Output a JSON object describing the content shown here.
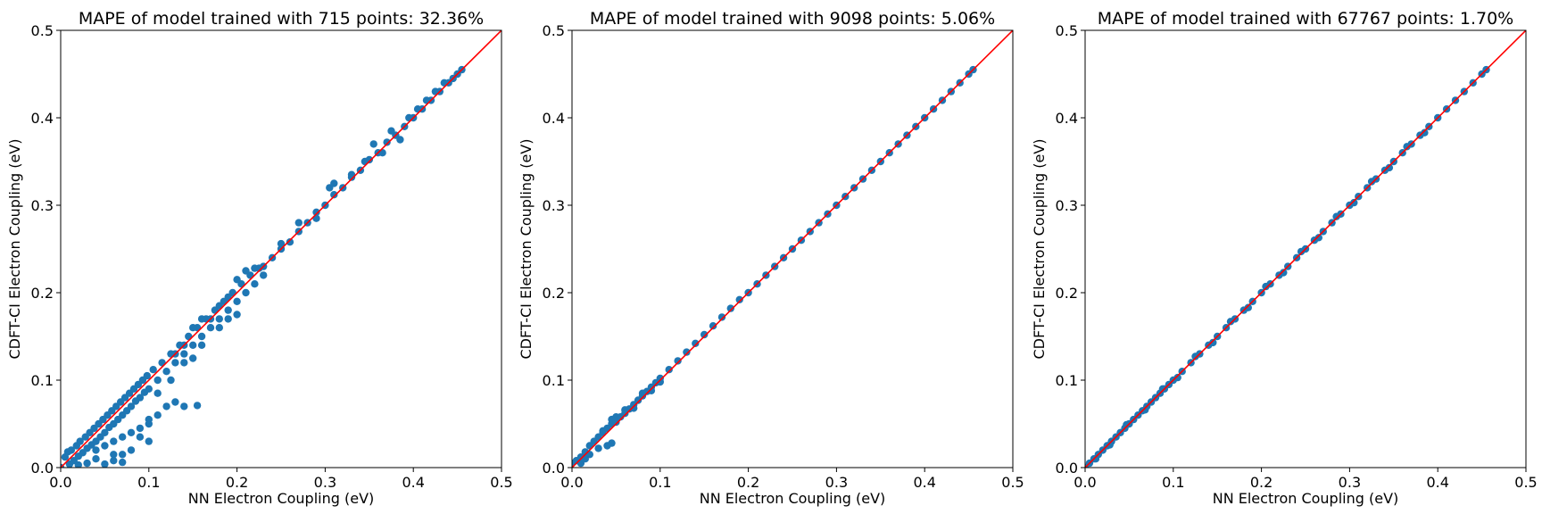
{
  "chart_data": [
    {
      "type": "scatter",
      "title": "MAPE of model trained with 715 points: 32.36%",
      "xlabel": "NN Electron Coupling (eV)",
      "ylabel": "CDFT-CI Electron Coupling (eV)",
      "xlim": [
        0.0,
        0.5
      ],
      "ylim": [
        0.0,
        0.5
      ],
      "xticks": [
        "0.0",
        "0.1",
        "0.2",
        "0.3",
        "0.4",
        "0.5"
      ],
      "yticks": [
        "0.0",
        "0.1",
        "0.2",
        "0.3",
        "0.4",
        "0.5"
      ],
      "grid": false,
      "reference_line": {
        "x": [
          0.0,
          0.5
        ],
        "y": [
          0.0,
          0.5
        ],
        "color": "#ff0000"
      },
      "marker_color": "#1f77b4",
      "points": [
        [
          0.0,
          0.0
        ],
        [
          0.005,
          0.012
        ],
        [
          0.008,
          0.018
        ],
        [
          0.01,
          0.004
        ],
        [
          0.012,
          0.02
        ],
        [
          0.015,
          0.008
        ],
        [
          0.018,
          0.025
        ],
        [
          0.02,
          0.013
        ],
        [
          0.022,
          0.03
        ],
        [
          0.025,
          0.017
        ],
        [
          0.028,
          0.035
        ],
        [
          0.03,
          0.022
        ],
        [
          0.033,
          0.04
        ],
        [
          0.035,
          0.026
        ],
        [
          0.038,
          0.045
        ],
        [
          0.04,
          0.03
        ],
        [
          0.043,
          0.05
        ],
        [
          0.045,
          0.035
        ],
        [
          0.048,
          0.055
        ],
        [
          0.05,
          0.04
        ],
        [
          0.053,
          0.06
        ],
        [
          0.055,
          0.046
        ],
        [
          0.058,
          0.065
        ],
        [
          0.06,
          0.05
        ],
        [
          0.063,
          0.07
        ],
        [
          0.065,
          0.055
        ],
        [
          0.068,
          0.075
        ],
        [
          0.07,
          0.06
        ],
        [
          0.073,
          0.08
        ],
        [
          0.075,
          0.065
        ],
        [
          0.078,
          0.085
        ],
        [
          0.08,
          0.07
        ],
        [
          0.083,
          0.09
        ],
        [
          0.085,
          0.076
        ],
        [
          0.088,
          0.095
        ],
        [
          0.09,
          0.08
        ],
        [
          0.093,
          0.1
        ],
        [
          0.095,
          0.086
        ],
        [
          0.098,
          0.105
        ],
        [
          0.1,
          0.09
        ],
        [
          0.105,
          0.112
        ],
        [
          0.11,
          0.1
        ],
        [
          0.115,
          0.12
        ],
        [
          0.12,
          0.11
        ],
        [
          0.125,
          0.13
        ],
        [
          0.13,
          0.12
        ],
        [
          0.135,
          0.14
        ],
        [
          0.14,
          0.13
        ],
        [
          0.145,
          0.15
        ],
        [
          0.15,
          0.14
        ],
        [
          0.155,
          0.16
        ],
        [
          0.16,
          0.15
        ],
        [
          0.165,
          0.17
        ],
        [
          0.17,
          0.16
        ],
        [
          0.175,
          0.18
        ],
        [
          0.18,
          0.17
        ],
        [
          0.185,
          0.19
        ],
        [
          0.19,
          0.18
        ],
        [
          0.195,
          0.2
        ],
        [
          0.2,
          0.19
        ],
        [
          0.205,
          0.21
        ],
        [
          0.21,
          0.2
        ],
        [
          0.215,
          0.22
        ],
        [
          0.22,
          0.21
        ],
        [
          0.225,
          0.228
        ],
        [
          0.23,
          0.22
        ],
        [
          0.24,
          0.24
        ],
        [
          0.25,
          0.25
        ],
        [
          0.26,
          0.258
        ],
        [
          0.27,
          0.27
        ],
        [
          0.28,
          0.28
        ],
        [
          0.29,
          0.292
        ],
        [
          0.3,
          0.3
        ],
        [
          0.31,
          0.312
        ],
        [
          0.32,
          0.32
        ],
        [
          0.33,
          0.332
        ],
        [
          0.34,
          0.34
        ],
        [
          0.35,
          0.352
        ],
        [
          0.36,
          0.36
        ],
        [
          0.37,
          0.372
        ],
        [
          0.38,
          0.38
        ],
        [
          0.39,
          0.39
        ],
        [
          0.4,
          0.4
        ],
        [
          0.41,
          0.41
        ],
        [
          0.42,
          0.42
        ],
        [
          0.43,
          0.43
        ],
        [
          0.44,
          0.44
        ],
        [
          0.45,
          0.45
        ],
        [
          0.455,
          0.455
        ],
        [
          0.02,
          0.003
        ],
        [
          0.03,
          0.005
        ],
        [
          0.04,
          0.01
        ],
        [
          0.05,
          0.004
        ],
        [
          0.06,
          0.015
        ],
        [
          0.07,
          0.006
        ],
        [
          0.04,
          0.02
        ],
        [
          0.05,
          0.025
        ],
        [
          0.06,
          0.03
        ],
        [
          0.07,
          0.035
        ],
        [
          0.08,
          0.04
        ],
        [
          0.09,
          0.035
        ],
        [
          0.1,
          0.03
        ],
        [
          0.1,
          0.05
        ],
        [
          0.11,
          0.06
        ],
        [
          0.12,
          0.07
        ],
        [
          0.13,
          0.075
        ],
        [
          0.14,
          0.07
        ],
        [
          0.155,
          0.071
        ],
        [
          0.1,
          0.055
        ],
        [
          0.08,
          0.02
        ],
        [
          0.07,
          0.015
        ],
        [
          0.06,
          0.008
        ],
        [
          0.09,
          0.045
        ],
        [
          0.11,
          0.085
        ],
        [
          0.125,
          0.1
        ],
        [
          0.13,
          0.13
        ],
        [
          0.14,
          0.14
        ],
        [
          0.15,
          0.16
        ],
        [
          0.16,
          0.17
        ],
        [
          0.17,
          0.17
        ],
        [
          0.18,
          0.185
        ],
        [
          0.19,
          0.195
        ],
        [
          0.2,
          0.215
        ],
        [
          0.21,
          0.225
        ],
        [
          0.22,
          0.228
        ],
        [
          0.23,
          0.23
        ],
        [
          0.25,
          0.256
        ],
        [
          0.27,
          0.28
        ],
        [
          0.29,
          0.285
        ],
        [
          0.305,
          0.32
        ],
        [
          0.31,
          0.325
        ],
        [
          0.33,
          0.335
        ],
        [
          0.345,
          0.35
        ],
        [
          0.355,
          0.37
        ],
        [
          0.365,
          0.36
        ],
        [
          0.375,
          0.385
        ],
        [
          0.385,
          0.375
        ],
        [
          0.395,
          0.4
        ],
        [
          0.405,
          0.41
        ],
        [
          0.415,
          0.42
        ],
        [
          0.425,
          0.43
        ],
        [
          0.435,
          0.44
        ],
        [
          0.445,
          0.445
        ],
        [
          0.14,
          0.12
        ],
        [
          0.15,
          0.125
        ],
        [
          0.16,
          0.14
        ],
        [
          0.18,
          0.16
        ],
        [
          0.19,
          0.17
        ],
        [
          0.2,
          0.175
        ]
      ]
    },
    {
      "type": "scatter",
      "title": "MAPE of model trained with 9098 points:  5.06%",
      "xlabel": "NN Electron Coupling (eV)",
      "ylabel": "CDFT-CI Electron Coupling (eV)",
      "xlim": [
        0.0,
        0.5
      ],
      "ylim": [
        0.0,
        0.5
      ],
      "xticks": [
        "0.0",
        "0.1",
        "0.2",
        "0.3",
        "0.4",
        "0.5"
      ],
      "yticks": [
        "0.0",
        "0.1",
        "0.2",
        "0.3",
        "0.4",
        "0.5"
      ],
      "grid": false,
      "reference_line": {
        "x": [
          0.0,
          0.5
        ],
        "y": [
          0.0,
          0.5
        ],
        "color": "#ff0000"
      },
      "marker_color": "#1f77b4",
      "points": [
        [
          0.0,
          0.005
        ],
        [
          0.005,
          0.008
        ],
        [
          0.01,
          0.012
        ],
        [
          0.015,
          0.018
        ],
        [
          0.02,
          0.025
        ],
        [
          0.025,
          0.03
        ],
        [
          0.03,
          0.035
        ],
        [
          0.035,
          0.04
        ],
        [
          0.04,
          0.045
        ],
        [
          0.045,
          0.05
        ],
        [
          0.05,
          0.058
        ],
        [
          0.055,
          0.058
        ],
        [
          0.06,
          0.062
        ],
        [
          0.065,
          0.067
        ],
        [
          0.07,
          0.072
        ],
        [
          0.075,
          0.077
        ],
        [
          0.08,
          0.082
        ],
        [
          0.085,
          0.087
        ],
        [
          0.09,
          0.092
        ],
        [
          0.095,
          0.097
        ],
        [
          0.1,
          0.102
        ],
        [
          0.11,
          0.112
        ],
        [
          0.12,
          0.122
        ],
        [
          0.13,
          0.132
        ],
        [
          0.14,
          0.142
        ],
        [
          0.15,
          0.152
        ],
        [
          0.16,
          0.162
        ],
        [
          0.17,
          0.172
        ],
        [
          0.18,
          0.182
        ],
        [
          0.19,
          0.192
        ],
        [
          0.2,
          0.2
        ],
        [
          0.21,
          0.21
        ],
        [
          0.22,
          0.22
        ],
        [
          0.23,
          0.23
        ],
        [
          0.24,
          0.24
        ],
        [
          0.25,
          0.25
        ],
        [
          0.26,
          0.26
        ],
        [
          0.27,
          0.27
        ],
        [
          0.28,
          0.28
        ],
        [
          0.29,
          0.29
        ],
        [
          0.3,
          0.3
        ],
        [
          0.31,
          0.31
        ],
        [
          0.32,
          0.32
        ],
        [
          0.33,
          0.33
        ],
        [
          0.34,
          0.34
        ],
        [
          0.35,
          0.35
        ],
        [
          0.36,
          0.36
        ],
        [
          0.37,
          0.37
        ],
        [
          0.38,
          0.38
        ],
        [
          0.39,
          0.39
        ],
        [
          0.4,
          0.4
        ],
        [
          0.41,
          0.41
        ],
        [
          0.42,
          0.42
        ],
        [
          0.43,
          0.43
        ],
        [
          0.44,
          0.44
        ],
        [
          0.45,
          0.45
        ],
        [
          0.455,
          0.455
        ],
        [
          0.03,
          0.022
        ],
        [
          0.04,
          0.025
        ],
        [
          0.045,
          0.028
        ],
        [
          0.02,
          0.015
        ],
        [
          0.015,
          0.01
        ],
        [
          0.01,
          0.005
        ],
        [
          0.035,
          0.042
        ],
        [
          0.045,
          0.055
        ],
        [
          0.05,
          0.052
        ],
        [
          0.06,
          0.066
        ],
        [
          0.07,
          0.068
        ],
        [
          0.08,
          0.085
        ],
        [
          0.09,
          0.088
        ],
        [
          0.1,
          0.098
        ]
      ]
    },
    {
      "type": "scatter",
      "title": "MAPE of model trained with 67767 points:  1.70%",
      "xlabel": "NN Electron Coupling (eV)",
      "ylabel": "CDFT-CI Electron Coupling (eV)",
      "xlim": [
        0.0,
        0.5
      ],
      "ylim": [
        0.0,
        0.5
      ],
      "xticks": [
        "0.0",
        "0.1",
        "0.2",
        "0.3",
        "0.4",
        "0.5"
      ],
      "yticks": [
        "0.0",
        "0.1",
        "0.2",
        "0.3",
        "0.4",
        "0.5"
      ],
      "grid": false,
      "reference_line": {
        "x": [
          0.0,
          0.5
        ],
        "y": [
          0.0,
          0.5
        ],
        "color": "#ff0000"
      },
      "marker_color": "#1f77b4",
      "points": [
        [
          0.0,
          0.0
        ],
        [
          0.005,
          0.005
        ],
        [
          0.01,
          0.01
        ],
        [
          0.015,
          0.015
        ],
        [
          0.02,
          0.02
        ],
        [
          0.025,
          0.025
        ],
        [
          0.03,
          0.03
        ],
        [
          0.035,
          0.035
        ],
        [
          0.04,
          0.04
        ],
        [
          0.045,
          0.045
        ],
        [
          0.05,
          0.05
        ],
        [
          0.055,
          0.055
        ],
        [
          0.06,
          0.06
        ],
        [
          0.065,
          0.065
        ],
        [
          0.07,
          0.07
        ],
        [
          0.075,
          0.075
        ],
        [
          0.08,
          0.08
        ],
        [
          0.085,
          0.085
        ],
        [
          0.09,
          0.09
        ],
        [
          0.095,
          0.095
        ],
        [
          0.1,
          0.1
        ],
        [
          0.11,
          0.11
        ],
        [
          0.12,
          0.12
        ],
        [
          0.13,
          0.13
        ],
        [
          0.14,
          0.14
        ],
        [
          0.15,
          0.15
        ],
        [
          0.16,
          0.16
        ],
        [
          0.17,
          0.17
        ],
        [
          0.18,
          0.18
        ],
        [
          0.19,
          0.19
        ],
        [
          0.2,
          0.2
        ],
        [
          0.21,
          0.21
        ],
        [
          0.22,
          0.22
        ],
        [
          0.23,
          0.23
        ],
        [
          0.24,
          0.24
        ],
        [
          0.25,
          0.25
        ],
        [
          0.26,
          0.26
        ],
        [
          0.27,
          0.27
        ],
        [
          0.28,
          0.28
        ],
        [
          0.29,
          0.29
        ],
        [
          0.3,
          0.3
        ],
        [
          0.31,
          0.31
        ],
        [
          0.32,
          0.32
        ],
        [
          0.33,
          0.33
        ],
        [
          0.34,
          0.34
        ],
        [
          0.35,
          0.35
        ],
        [
          0.36,
          0.36
        ],
        [
          0.37,
          0.37
        ],
        [
          0.38,
          0.38
        ],
        [
          0.39,
          0.39
        ],
        [
          0.4,
          0.4
        ],
        [
          0.41,
          0.41
        ],
        [
          0.42,
          0.42
        ],
        [
          0.43,
          0.43
        ],
        [
          0.44,
          0.44
        ],
        [
          0.45,
          0.45
        ],
        [
          0.455,
          0.455
        ],
        [
          0.012,
          0.01
        ],
        [
          0.028,
          0.026
        ],
        [
          0.047,
          0.049
        ],
        [
          0.068,
          0.066
        ],
        [
          0.088,
          0.09
        ],
        [
          0.105,
          0.103
        ],
        [
          0.125,
          0.127
        ],
        [
          0.145,
          0.143
        ],
        [
          0.165,
          0.167
        ],
        [
          0.185,
          0.183
        ],
        [
          0.205,
          0.207
        ],
        [
          0.225,
          0.223
        ],
        [
          0.245,
          0.247
        ],
        [
          0.265,
          0.263
        ],
        [
          0.285,
          0.287
        ],
        [
          0.305,
          0.303
        ],
        [
          0.325,
          0.327
        ],
        [
          0.345,
          0.343
        ],
        [
          0.365,
          0.367
        ],
        [
          0.385,
          0.383
        ]
      ]
    }
  ]
}
